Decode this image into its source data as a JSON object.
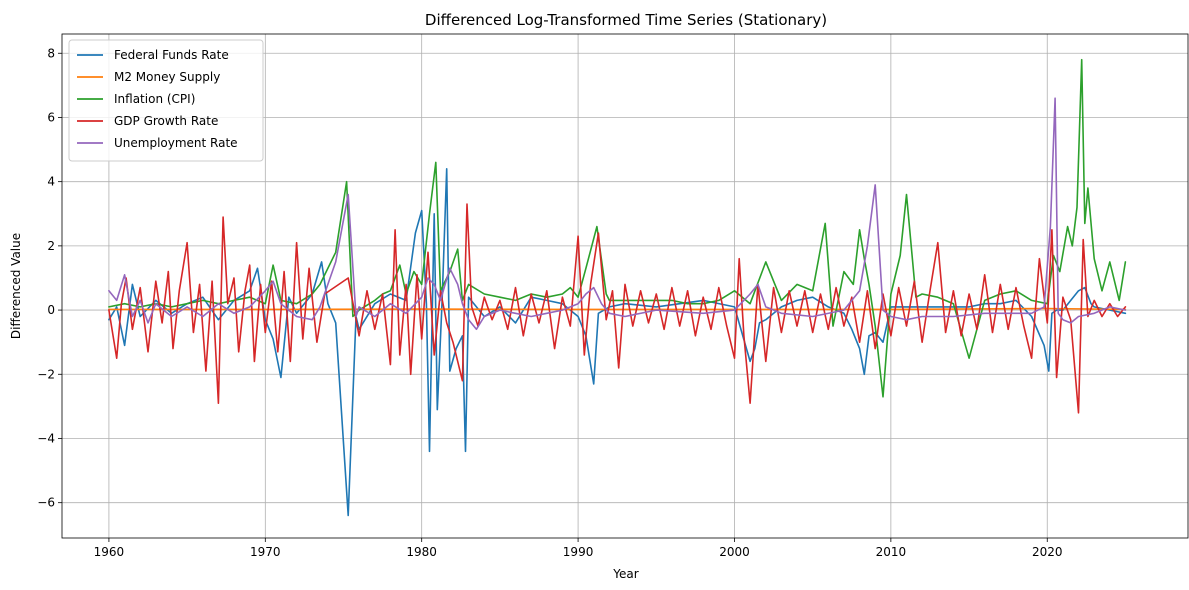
{
  "chart_data": {
    "type": "line",
    "title": "Differenced Log-Transformed Time Series (Stationary)",
    "xlabel": "Year",
    "ylabel": "Differenced Value",
    "xlim": [
      1957,
      2029
    ],
    "ylim": [
      -7.1,
      8.6
    ],
    "xticks": [
      1960,
      1970,
      1980,
      1990,
      2000,
      2010,
      2020
    ],
    "yticks": [
      -6,
      -4,
      -2,
      0,
      2,
      4,
      6,
      8
    ],
    "grid": true,
    "legend_position": "top-left",
    "series": [
      {
        "name": "Federal Funds Rate",
        "color": "#1f77b4",
        "x": [
          1960.0,
          1960.5,
          1961.0,
          1961.5,
          1962.0,
          1963.0,
          1964.0,
          1965.0,
          1966.0,
          1967.0,
          1968.0,
          1969.0,
          1969.5,
          1970.0,
          1970.5,
          1971.0,
          1971.5,
          1972.0,
          1973.0,
          1973.6,
          1974.0,
          1974.5,
          1975.3,
          1975.8,
          1976.0,
          1977.0,
          1978.0,
          1979.0,
          1979.6,
          1980.0,
          1980.3,
          1980.5,
          1980.8,
          1981.0,
          1981.3,
          1981.6,
          1981.8,
          1982.2,
          1982.6,
          1982.8,
          1983.0,
          1984.0,
          1985.0,
          1986.0,
          1987.0,
          1988.0,
          1989.0,
          1990.0,
          1990.5,
          1991.0,
          1991.3,
          1992.0,
          1993.0,
          1995.0,
          1998.0,
          2000.0,
          2001.0,
          2001.3,
          2001.6,
          2002.0,
          2003.0,
          2004.0,
          2005.0,
          2006.0,
          2007.0,
          2007.5,
          2008.0,
          2008.3,
          2008.6,
          2009.0,
          2009.5,
          2010.0,
          2015.0,
          2016.0,
          2017.0,
          2018.0,
          2019.0,
          2019.8,
          2020.1,
          2020.3,
          2020.6,
          2021.0,
          2022.0,
          2022.4,
          2022.8,
          2023.0,
          2024.0,
          2025.0
        ],
        "y": [
          -0.3,
          0.1,
          -1.1,
          0.8,
          -0.2,
          0.3,
          -0.1,
          0.2,
          0.4,
          -0.3,
          0.3,
          0.6,
          1.3,
          -0.3,
          -0.9,
          -2.1,
          0.4,
          -0.1,
          0.5,
          1.5,
          0.2,
          -0.4,
          -6.4,
          -0.2,
          -0.6,
          0.2,
          0.5,
          0.3,
          2.4,
          3.1,
          0.2,
          -4.4,
          3.0,
          -3.1,
          0.2,
          4.4,
          -1.9,
          -1.2,
          -0.8,
          -4.4,
          0.4,
          -0.2,
          0.1,
          -0.4,
          0.4,
          0.3,
          0.2,
          -0.2,
          -0.8,
          -2.3,
          -0.1,
          0.1,
          0.2,
          0.1,
          0.3,
          0.1,
          -1.6,
          -1.2,
          -0.4,
          -0.3,
          0.1,
          0.3,
          0.4,
          0.1,
          -0.1,
          -0.6,
          -1.2,
          -2.0,
          -0.8,
          -0.7,
          -1.0,
          0.1,
          0.1,
          0.2,
          0.2,
          0.3,
          -0.2,
          -1.1,
          -1.9,
          -0.1,
          0.0,
          0.0,
          0.6,
          0.7,
          0.2,
          0.1,
          0.0,
          -0.1
        ]
      },
      {
        "name": "M2 Money Supply",
        "color": "#ff7f0e",
        "x": [
          1960.0,
          1970.0,
          1980.0,
          1990.0,
          2000.0,
          2010.0,
          2020.0,
          2025.0
        ],
        "y": [
          0.02,
          0.02,
          0.03,
          0.02,
          0.02,
          0.02,
          0.05,
          0.02
        ]
      },
      {
        "name": "Inflation (CPI)",
        "color": "#2ca02c",
        "x": [
          1960.0,
          1961.0,
          1962.0,
          1963.0,
          1964.0,
          1965.0,
          1966.0,
          1967.0,
          1968.0,
          1969.0,
          1970.0,
          1970.5,
          1971.0,
          1972.0,
          1973.0,
          1973.5,
          1974.5,
          1975.2,
          1975.6,
          1976.0,
          1977.0,
          1977.5,
          1978.0,
          1978.6,
          1979.0,
          1979.5,
          1980.0,
          1980.5,
          1980.9,
          1981.2,
          1981.8,
          1982.3,
          1982.6,
          1983.0,
          1984.0,
          1985.0,
          1986.0,
          1987.0,
          1988.0,
          1989.0,
          1989.5,
          1990.0,
          1990.5,
          1991.2,
          1991.8,
          1992.0,
          1993.0,
          1994.0,
          1995.0,
          1996.0,
          1997.0,
          1998.0,
          1999.0,
          2000.0,
          2001.0,
          2002.0,
          2003.0,
          2004.0,
          2005.0,
          2005.8,
          2006.3,
          2007.0,
          2007.6,
          2008.0,
          2008.3,
          2008.6,
          2009.0,
          2009.5,
          2010.0,
          2010.6,
          2011.0,
          2011.6,
          2012.0,
          2013.0,
          2014.0,
          2015.0,
          2016.0,
          2017.0,
          2018.0,
          2019.0,
          2020.0,
          2020.4,
          2020.8,
          2021.3,
          2021.6,
          2021.9,
          2022.2,
          2022.4,
          2022.6,
          2023.0,
          2023.5,
          2024.0,
          2024.6,
          2025.0
        ],
        "y": [
          0.1,
          0.2,
          0.1,
          0.2,
          0.1,
          0.2,
          0.3,
          0.2,
          0.3,
          0.4,
          0.2,
          1.4,
          0.3,
          0.2,
          0.5,
          0.8,
          1.8,
          4.0,
          -0.2,
          0.0,
          0.3,
          0.5,
          0.6,
          1.4,
          0.5,
          1.2,
          0.8,
          3.0,
          4.6,
          0.6,
          1.2,
          1.9,
          0.3,
          0.8,
          0.5,
          0.4,
          0.3,
          0.5,
          0.4,
          0.5,
          0.7,
          0.4,
          1.3,
          2.6,
          0.5,
          0.3,
          0.3,
          0.3,
          0.3,
          0.3,
          0.2,
          0.2,
          0.3,
          0.6,
          0.2,
          1.5,
          0.3,
          0.8,
          0.6,
          2.7,
          -0.5,
          1.2,
          0.8,
          2.5,
          1.6,
          0.8,
          -0.5,
          -2.7,
          0.5,
          1.7,
          3.6,
          0.4,
          0.5,
          0.4,
          0.2,
          -1.5,
          0.3,
          0.5,
          0.6,
          0.3,
          0.2,
          1.7,
          1.2,
          2.6,
          2.0,
          3.2,
          7.8,
          2.7,
          3.8,
          1.6,
          0.6,
          1.5,
          0.3,
          1.5
        ]
      },
      {
        "name": "GDP Growth Rate",
        "color": "#d62728",
        "x": [
          1960.0,
          1960.5,
          1960.8,
          1961.1,
          1961.5,
          1962.0,
          1962.5,
          1963.0,
          1963.4,
          1963.8,
          1964.1,
          1964.5,
          1965.0,
          1965.4,
          1965.8,
          1966.2,
          1966.6,
          1967.0,
          1967.3,
          1967.6,
          1968.0,
          1968.3,
          1968.7,
          1969.0,
          1969.3,
          1969.7,
          1970.0,
          1970.4,
          1970.8,
          1971.2,
          1971.6,
          1972.0,
          1972.4,
          1972.8,
          1973.3,
          1973.8,
          1975.3,
          1976.0,
          1976.5,
          1977.0,
          1977.5,
          1978.0,
          1978.3,
          1978.6,
          1979.0,
          1979.3,
          1979.7,
          1980.0,
          1980.4,
          1980.8,
          1981.2,
          1981.6,
          1982.0,
          1982.6,
          1982.9,
          1983.2,
          1983.6,
          1984.0,
          1984.5,
          1985.0,
          1985.5,
          1986.0,
          1986.5,
          1987.0,
          1987.5,
          1988.0,
          1988.5,
          1989.0,
          1989.5,
          1990.0,
          1990.4,
          1990.8,
          1991.3,
          1991.8,
          1992.2,
          1992.6,
          1993.0,
          1993.5,
          1994.0,
          1994.5,
          1995.0,
          1995.5,
          1996.0,
          1996.5,
          1997.0,
          1997.5,
          1998.0,
          1998.5,
          1999.0,
          1999.5,
          2000.0,
          2000.3,
          2000.6,
          2001.0,
          2001.5,
          2002.0,
          2002.5,
          2003.0,
          2003.5,
          2004.0,
          2004.5,
          2005.0,
          2005.5,
          2006.0,
          2006.5,
          2007.0,
          2007.5,
          2008.0,
          2008.5,
          2009.0,
          2009.5,
          2010.0,
          2010.5,
          2011.0,
          2011.5,
          2012.0,
          2012.5,
          2013.0,
          2013.5,
          2014.0,
          2014.5,
          2015.0,
          2015.5,
          2016.0,
          2016.5,
          2017.0,
          2017.5,
          2018.0,
          2018.5,
          2019.0,
          2019.5,
          2020.0,
          2020.3,
          2020.6,
          2021.0,
          2021.5,
          2022.0,
          2022.3,
          2022.6,
          2023.0,
          2023.5,
          2024.0,
          2024.5,
          2025.0
        ],
        "y": [
          0.0,
          -1.5,
          0.2,
          1.0,
          -0.6,
          0.7,
          -1.3,
          0.9,
          -0.4,
          1.2,
          -1.2,
          0.6,
          2.1,
          -0.7,
          0.8,
          -1.9,
          0.9,
          -2.9,
          2.9,
          0.2,
          1.0,
          -1.3,
          0.6,
          1.4,
          -1.6,
          0.8,
          -0.7,
          0.9,
          -1.3,
          1.2,
          -1.6,
          2.1,
          -0.9,
          1.3,
          -1.0,
          0.5,
          1.0,
          -0.8,
          0.6,
          -0.6,
          0.5,
          -1.7,
          2.5,
          -1.4,
          0.8,
          -2.0,
          1.1,
          -0.9,
          1.8,
          -1.4,
          0.6,
          -0.4,
          -1.0,
          -2.2,
          3.3,
          0.1,
          -0.5,
          0.4,
          -0.3,
          0.3,
          -0.6,
          0.7,
          -0.8,
          0.5,
          -0.4,
          0.6,
          -1.2,
          0.4,
          -0.5,
          2.3,
          -1.4,
          0.8,
          2.4,
          -0.3,
          0.6,
          -1.8,
          0.8,
          -0.5,
          0.6,
          -0.4,
          0.5,
          -0.6,
          0.7,
          -0.5,
          0.6,
          -0.8,
          0.4,
          -0.6,
          0.7,
          -0.5,
          -1.5,
          1.6,
          -0.8,
          -2.9,
          0.8,
          -1.6,
          0.7,
          -0.7,
          0.6,
          -0.5,
          0.6,
          -0.7,
          0.5,
          -0.6,
          0.7,
          -0.5,
          0.4,
          -1.0,
          0.6,
          -1.2,
          0.5,
          -0.8,
          0.7,
          -0.5,
          0.9,
          -1.0,
          0.6,
          2.1,
          -0.7,
          0.6,
          -0.8,
          0.5,
          -0.6,
          1.1,
          -0.7,
          0.8,
          -0.6,
          0.7,
          -0.5,
          -1.5,
          1.6,
          -0.4,
          2.5,
          -2.1,
          0.4,
          -0.3,
          -3.2,
          2.2,
          -0.2,
          0.3,
          -0.2,
          0.2,
          -0.2,
          0.1
        ]
      },
      {
        "name": "Unemployment Rate",
        "color": "#9467bd",
        "x": [
          1960.0,
          1960.5,
          1961.0,
          1961.5,
          1962.0,
          1962.5,
          1963.0,
          1964.0,
          1965.0,
          1966.0,
          1967.0,
          1968.0,
          1969.0,
          1970.0,
          1970.5,
          1971.0,
          1972.0,
          1973.0,
          1973.5,
          1974.5,
          1975.3,
          1975.8,
          1976.0,
          1977.0,
          1978.0,
          1979.0,
          1980.0,
          1980.4,
          1980.8,
          1981.2,
          1981.8,
          1982.3,
          1982.6,
          1983.0,
          1983.5,
          1984.0,
          1985.0,
          1986.0,
          1987.0,
          1988.0,
          1989.0,
          1990.0,
          1990.5,
          1991.0,
          1991.5,
          1992.0,
          1993.0,
          1995.0,
          1998.0,
          2000.0,
          2001.0,
          2001.5,
          2002.0,
          2003.0,
          2005.0,
          2007.0,
          2008.0,
          2008.5,
          2009.0,
          2009.5,
          2010.0,
          2011.0,
          2012.0,
          2014.0,
          2016.0,
          2018.0,
          2019.0,
          2019.8,
          2020.2,
          2020.5,
          2020.7,
          2021.0,
          2021.5,
          2022.0,
          2023.0,
          2024.0,
          2025.0
        ],
        "y": [
          0.6,
          0.3,
          1.1,
          -0.2,
          0.3,
          -0.4,
          0.2,
          -0.2,
          0.1,
          -0.2,
          0.2,
          -0.1,
          0.1,
          0.6,
          0.9,
          0.2,
          -0.2,
          -0.3,
          0.1,
          1.5,
          3.6,
          -0.2,
          0.1,
          -0.2,
          0.2,
          -0.1,
          0.4,
          1.0,
          0.8,
          0.3,
          1.3,
          0.8,
          0.2,
          -0.3,
          -0.6,
          -0.2,
          0.0,
          -0.1,
          -0.2,
          -0.1,
          0.0,
          0.2,
          0.5,
          0.7,
          0.2,
          -0.1,
          -0.2,
          0.0,
          -0.1,
          0.0,
          0.5,
          0.8,
          0.1,
          -0.1,
          -0.2,
          0.0,
          0.6,
          2.0,
          3.9,
          0.0,
          -0.2,
          -0.3,
          -0.2,
          -0.2,
          -0.1,
          -0.1,
          -0.1,
          0.1,
          2.6,
          6.6,
          -0.1,
          -0.3,
          -0.4,
          -0.2,
          -0.1,
          0.1,
          0.0
        ]
      }
    ]
  }
}
